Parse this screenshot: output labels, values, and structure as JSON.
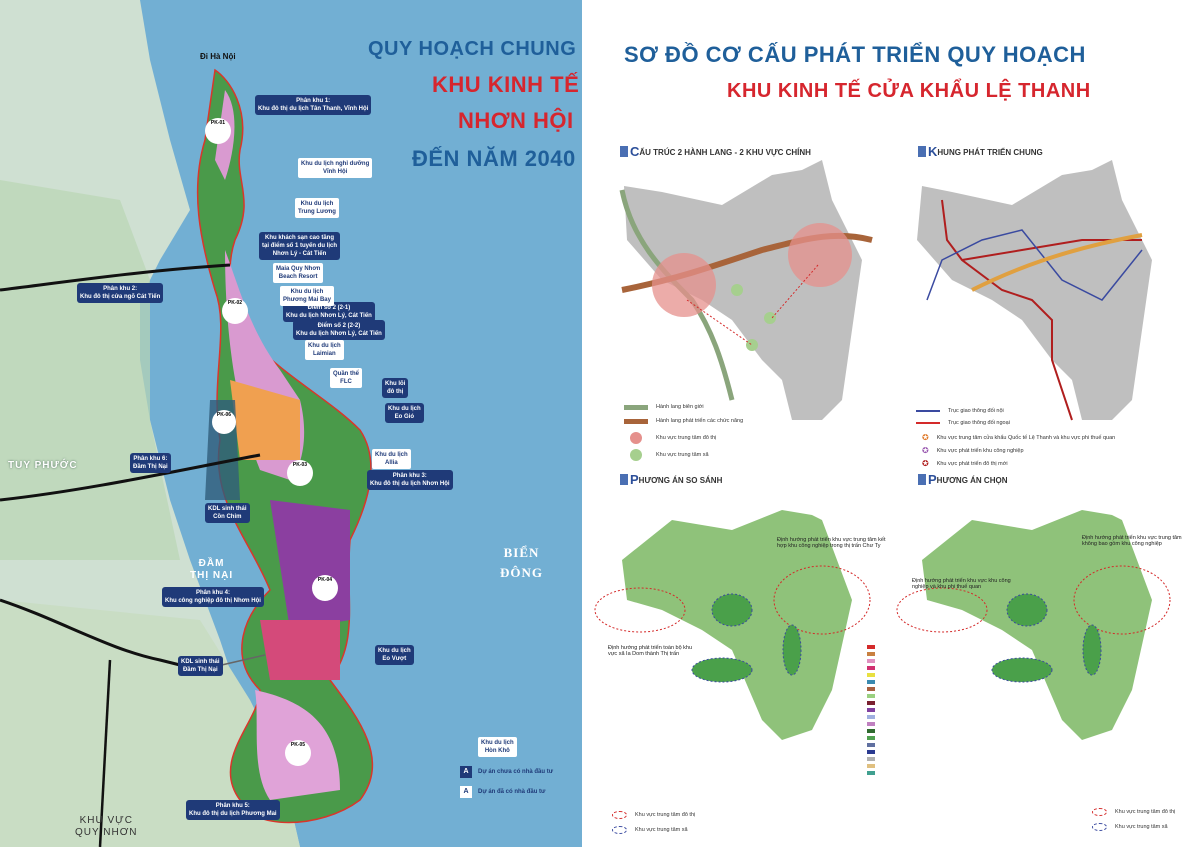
{
  "left_map": {
    "title": [
      "QUY HOẠCH CHUNG",
      "KHU KINH TẾ",
      "NHƠN HỘI",
      "ĐẾN NĂM 2040"
    ],
    "north_label": "Đi Hà Nội",
    "places": {
      "tuy_phuoc": "TUY PHƯỚC",
      "dam_thi_nai": "ĐẦM\nTHỊ NẠI",
      "bien_dong": "BIỂN\nĐÔNG",
      "quy_nhon": "KHU VỰC\nQUY NHƠN"
    },
    "navy_labels": [
      {
        "text": "Phân khu 1:\nKhu đô thị du lịch Tân Thanh, Vĩnh Hội"
      },
      {
        "text": "Khu khách sạn cao tầng\ntại điểm số 1 tuyến du lịch\nNhơn Lý - Cát Tiến"
      },
      {
        "text": "Điểm số 2 (2-1)\nKhu du lịch Nhơn Lý, Cát Tiến"
      },
      {
        "text": "Điểm số 2 (2-2)\nKhu du lịch Nhơn Lý, Cát Tiến"
      },
      {
        "text": "Khu lõi\nđô thị"
      },
      {
        "text": "Khu du lịch\nEo Gió"
      },
      {
        "text": "Phân khu 3:\nKhu đô thị du lịch Nhơn Hội"
      },
      {
        "text": "Phân khu 2:\nKhu đô thị cửa ngõ Cát Tiến"
      },
      {
        "text": "Phân khu 6:\nĐầm Thị Nại"
      },
      {
        "text": "KDL sinh thái\nCồn Chim"
      },
      {
        "text": "Phân khu 4:\nKhu công nghiệp đô thị Nhơn Hội"
      },
      {
        "text": "KDL sinh thái\nĐầm Thị Nại"
      },
      {
        "text": "Khu du lịch\nEo Vượt"
      },
      {
        "text": "Phân khu 5:\nKhu đô thị du lịch Phương Mai"
      }
    ],
    "white_labels": [
      {
        "text": "Khu du lịch nghỉ dưỡng\nVĩnh Hội"
      },
      {
        "text": "Khu du lịch\nTrung Lương"
      },
      {
        "text": "Maia Quy Nhơn\nBeach Resort"
      },
      {
        "text": "Khu du lịch\nPhương Mai Bay"
      },
      {
        "text": "Khu du lịch\nLaimian"
      },
      {
        "text": "Quần thể\nFLC"
      },
      {
        "text": "Khu du lịch\nAllia"
      },
      {
        "text": "Khu du lịch\nHòn Khô"
      }
    ],
    "zones": [
      "PK-01",
      "PK-02",
      "PK-06",
      "PK-03",
      "PK-04",
      "PK-05"
    ],
    "legend": [
      {
        "marker": "A",
        "text": "Dự án chưa có nhà đầu tư",
        "color": "#1f3a78"
      },
      {
        "marker": "A",
        "text": "Dự án đã có nhà đầu tư",
        "color": "#ffffff"
      }
    ]
  },
  "right_map": {
    "title": [
      "SƠ ĐỒ CƠ CẤU PHÁT TRIỂN QUY HOẠCH",
      "KHU KINH TẾ CỬA KHẨU LỆ THANH"
    ],
    "panels": [
      {
        "heading_first": "C",
        "heading_rest": "ẤU TRÚC 2 HÀNH LANG - 2 KHU VỰC CHÍNH",
        "legend": [
          {
            "text": "Hành lang biên giới",
            "color": "#8aa57c"
          },
          {
            "text": "Hành lang phát triển các chức năng",
            "color": "#a8643a"
          },
          {
            "text": "Khu vực trung tâm đô thị",
            "color": "#e5908c"
          },
          {
            "text": "Khu vực trung tâm xã",
            "color": "#a6cf8e"
          }
        ]
      },
      {
        "heading_first": "K",
        "heading_rest": "HUNG PHÁT TRIỂN CHUNG",
        "legend": [
          {
            "text": "Trục giao thông đối nội",
            "color": "#3a4aa0"
          },
          {
            "text": "Trục giao thông đối ngoại",
            "color": "#d42a2a"
          },
          {
            "text": "Khu vực trung tâm cửa khẩu Quốc tế Lệ Thanh và khu vực phi thuế quan",
            "color": "#e07a2a"
          },
          {
            "text": "Khu vực phát triển khu công nghiệp",
            "color": "#9a5ab0"
          },
          {
            "text": "Khu vực phát triển đô thị mới",
            "color": "#b01e1e"
          }
        ]
      },
      {
        "heading_first": "P",
        "heading_rest": "HƯƠNG ÁN SO SÁNH",
        "annotations": [
          "Định hướng phát triển khu vực trung tâm kết hợp khu công nghiệp trong thị trấn Chư Ty",
          "Định hướng phát triển toàn bộ khu vực xã Ia Dom thành Thị trấn"
        ],
        "legend": [
          {
            "text": "Khu vực trung tâm đô thị",
            "color": "#d42a2a"
          },
          {
            "text": "Khu vực trung tâm xã",
            "color": "#3a4aa0"
          }
        ]
      },
      {
        "heading_first": "P",
        "heading_rest": "HƯƠNG ÁN CHỌN",
        "annotations": [
          "Định hướng phát triển khu vực trung tâm không bao gồm khu công nghiệp",
          "Định hướng phát triển khu vực khu công nghiệp và khu phi thuế quan"
        ],
        "legend": [
          {
            "text": "Khu vực trung tâm đô thị",
            "color": "#d42a2a"
          },
          {
            "text": "Khu vực trung tâm xã",
            "color": "#3a4aa0"
          }
        ]
      }
    ]
  },
  "colors": {
    "title_blue": "#1f5f9a",
    "title_red": "#d6262e",
    "sea": "#72afd3",
    "navy_label": "#1f3a78"
  }
}
